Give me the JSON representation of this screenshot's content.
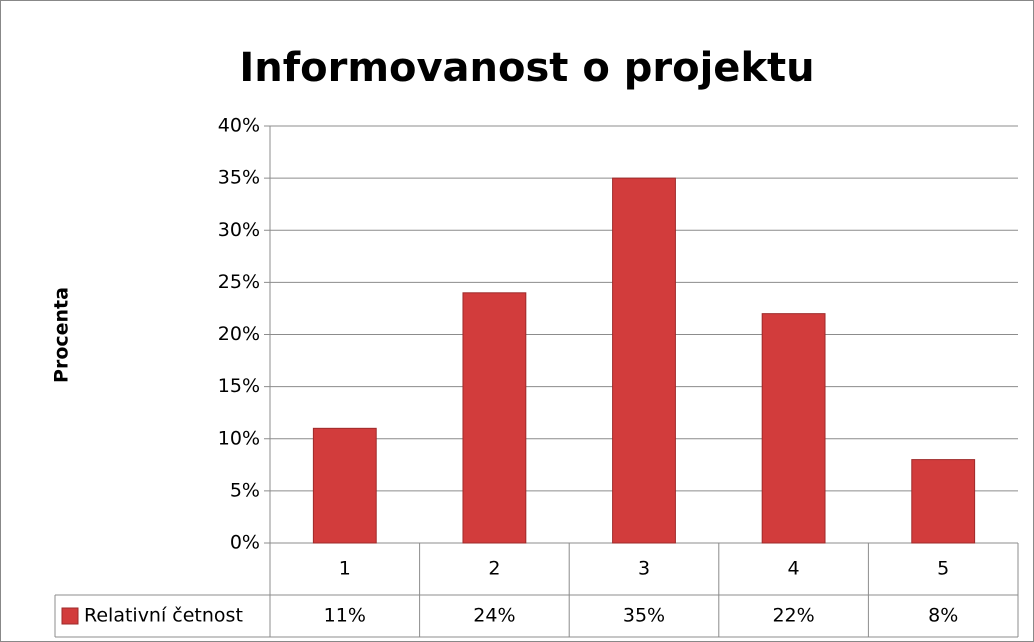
{
  "chart_data": {
    "type": "bar",
    "title": "Informovanost o projektu",
    "y_label": "Procenta",
    "categories": [
      "1",
      "2",
      "3",
      "4",
      "5"
    ],
    "series": [
      {
        "name": "Relativní četnost",
        "color": "#d23c3c",
        "values": [
          11,
          24,
          35,
          22,
          8
        ],
        "value_labels": [
          "11%",
          "24%",
          "35%",
          "22%",
          "8%"
        ]
      }
    ],
    "ylim": [
      0,
      40
    ],
    "yticks": [
      {
        "value": 0,
        "label": "0%"
      },
      {
        "value": 5,
        "label": "5%"
      },
      {
        "value": 10,
        "label": "10%"
      },
      {
        "value": 15,
        "label": "15%"
      },
      {
        "value": 20,
        "label": "20%"
      },
      {
        "value": 25,
        "label": "25%"
      },
      {
        "value": 30,
        "label": "30%"
      },
      {
        "value": 35,
        "label": "35%"
      },
      {
        "value": 40,
        "label": "40%"
      }
    ],
    "grid": true,
    "data_table": true
  }
}
